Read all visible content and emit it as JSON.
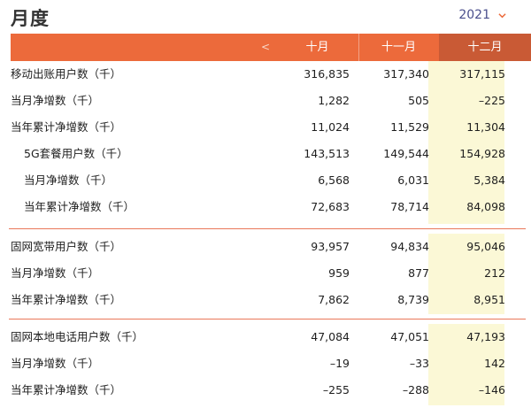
{
  "page": {
    "title": "月度"
  },
  "year_selector": {
    "value": "2021"
  },
  "columns": {
    "prev_label": "<",
    "months": [
      "十月",
      "十一月",
      "十二月"
    ],
    "selected_index": 2
  },
  "sections": [
    {
      "rows": [
        {
          "label": "移动出账用户数（千）",
          "indent": false,
          "values": [
            "316,835",
            "317,340",
            "317,115"
          ]
        },
        {
          "label": "当月净增数（千）",
          "indent": false,
          "values": [
            "1,282",
            "505",
            "–225"
          ]
        },
        {
          "label": "当年累计净增数（千）",
          "indent": false,
          "values": [
            "11,024",
            "11,529",
            "11,304"
          ]
        },
        {
          "label": "5G套餐用户数（千）",
          "indent": true,
          "values": [
            "143,513",
            "149,544",
            "154,928"
          ]
        },
        {
          "label": "当月净增数（千）",
          "indent": true,
          "values": [
            "6,568",
            "6,031",
            "5,384"
          ]
        },
        {
          "label": "当年累计净增数（千）",
          "indent": true,
          "values": [
            "72,683",
            "78,714",
            "84,098"
          ]
        }
      ]
    },
    {
      "rows": [
        {
          "label": "固网宽带用户数（千）",
          "indent": false,
          "values": [
            "93,957",
            "94,834",
            "95,046"
          ]
        },
        {
          "label": "当月净增数（千）",
          "indent": false,
          "values": [
            "959",
            "877",
            "212"
          ]
        },
        {
          "label": "当年累计净增数（千）",
          "indent": false,
          "values": [
            "7,862",
            "8,739",
            "8,951"
          ]
        }
      ]
    },
    {
      "rows": [
        {
          "label": "固网本地电话用户数（千）",
          "indent": false,
          "values": [
            "47,084",
            "47,051",
            "47,193"
          ]
        },
        {
          "label": "当月净增数（千）",
          "indent": false,
          "values": [
            "–19",
            "–33",
            "142"
          ]
        },
        {
          "label": "当年累计净增数（千）",
          "indent": false,
          "values": [
            "–255",
            "–288",
            "–146"
          ]
        }
      ]
    }
  ],
  "colors": {
    "header_bg": "#ec6a3b",
    "header_selected_bg": "#c95a35",
    "highlight_bg": "#fbf8d6",
    "divider": "#e9785a",
    "year_text": "#4a4f8c"
  },
  "icons": {
    "year_dropdown": "chevron-down-icon"
  }
}
